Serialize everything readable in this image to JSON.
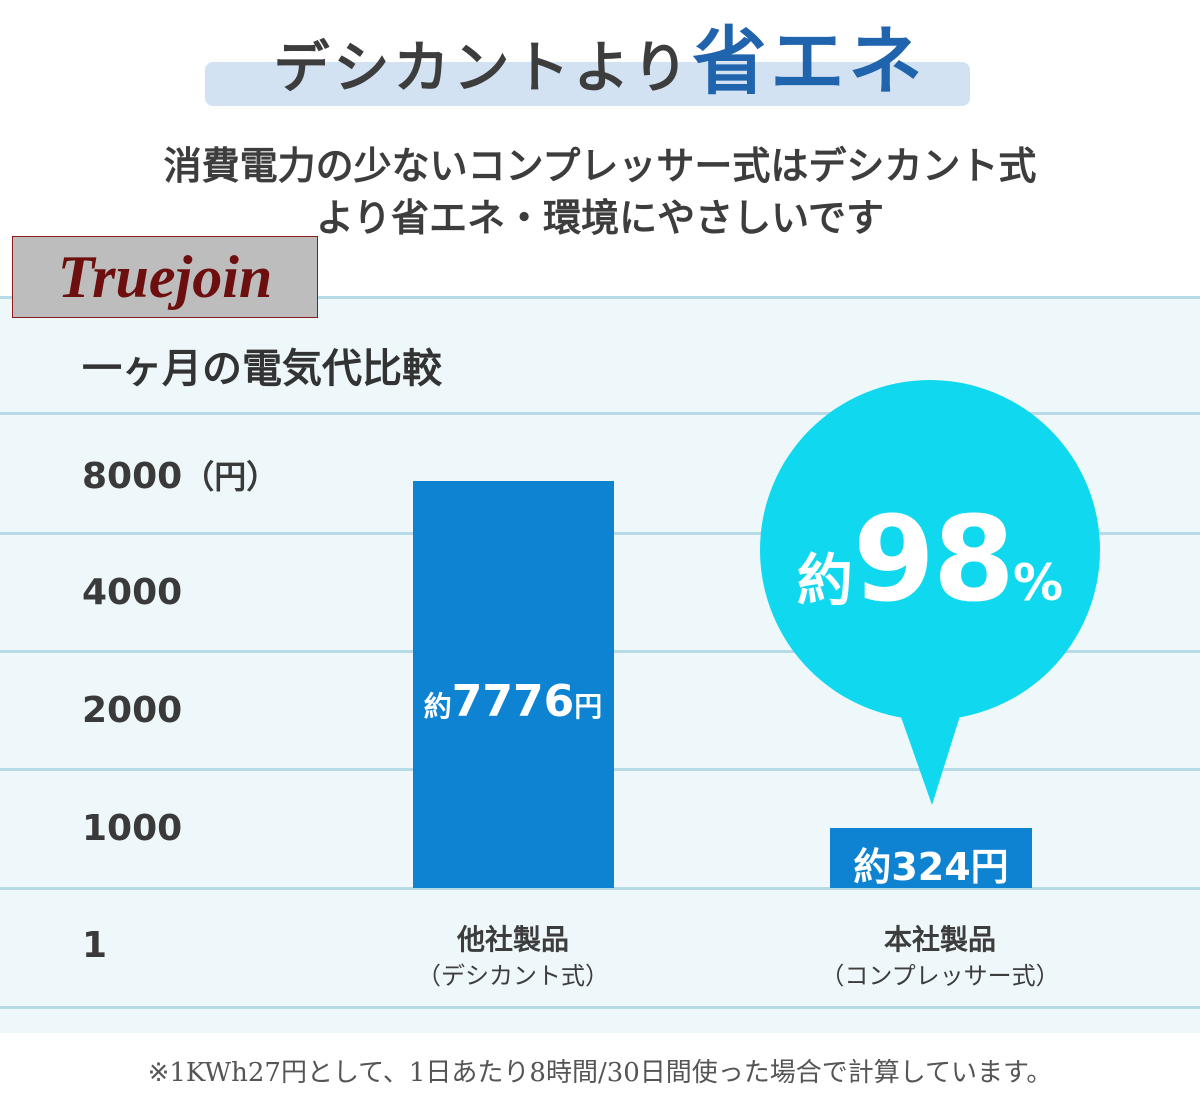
{
  "header": {
    "title_main": "デシカントより",
    "title_accent": "省エネ"
  },
  "subtitle": {
    "line1": "消費電力の少ないコンプレッサー式はデシカント式",
    "line2": "より省エネ・環境にやさしいです"
  },
  "brand": {
    "name": "Truejoin"
  },
  "colors": {
    "bar": "#0d83d2",
    "bubble": "#0fd8ef",
    "header_band": "#d3e2f3",
    "accent_text": "#1f64ad",
    "chart_bg": "#eef8fb",
    "brand_text": "#6d0f0f"
  },
  "chart_data": {
    "type": "bar",
    "title": "一ヶ月の電気代比較",
    "ylabel": "",
    "y_unit": "（円）",
    "y_ticks": [
      "8000",
      "4000",
      "2000",
      "1000",
      "1"
    ],
    "categories": [
      {
        "name": "他社製品",
        "sub": "（デシカント式）"
      },
      {
        "name": "本社製品",
        "sub": "（コンプレッサー式）"
      }
    ],
    "values": [
      7776,
      324
    ],
    "value_labels": [
      {
        "prefix": "約",
        "number": "7776",
        "suffix": "円"
      },
      {
        "prefix": "約",
        "number": "324",
        "suffix": "円"
      }
    ],
    "callout": {
      "prefix": "約",
      "number": "98",
      "suffix": "%"
    }
  },
  "footnote": "※1KWh27円として、1日あたり8時間/30日間使った場合で計算しています。"
}
